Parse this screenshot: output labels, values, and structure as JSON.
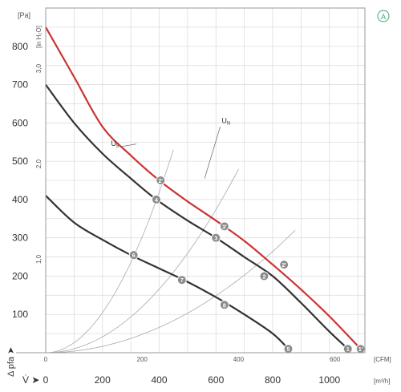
{
  "chart_data": {
    "type": "line",
    "corner_badge": "A",
    "x_primary": {
      "label": "[m³/h]",
      "symbol": "V̇ ➤",
      "ticks": [
        0,
        200,
        400,
        600,
        800,
        1000
      ],
      "range": [
        0,
        1125
      ]
    },
    "x_secondary": {
      "label": "[CFM]",
      "ticks": [
        0,
        200,
        400,
        600
      ]
    },
    "y_primary": {
      "label": "[Pa]",
      "symbol": "Δ pfa ➤",
      "ticks": [
        100,
        200,
        300,
        400,
        500,
        600,
        700,
        800
      ],
      "range": [
        0,
        900
      ]
    },
    "y_secondary": {
      "label": "[in H₂O]",
      "ticks": [
        "1,0",
        "2,0",
        "3,0"
      ]
    },
    "annotations": [
      {
        "text": "UN",
        "x": 620,
        "y": 600
      },
      {
        "text": "U5",
        "x": 230,
        "y": 540
      }
    ],
    "series": [
      {
        "color": "#cc3333",
        "points": [
          [
            0,
            850
          ],
          [
            100,
            720
          ],
          [
            200,
            590
          ],
          [
            300,
            515
          ],
          [
            400,
            450
          ],
          [
            500,
            395
          ],
          [
            600,
            345
          ],
          [
            700,
            292
          ],
          [
            800,
            230
          ],
          [
            900,
            165
          ],
          [
            1000,
            95
          ],
          [
            1110,
            10
          ]
        ],
        "markers": [
          {
            "label": "2'",
            "x": 405,
            "y": 450
          },
          {
            "label": "3'",
            "x": 630,
            "y": 330
          },
          {
            "label": "2'",
            "x": 840,
            "y": 230
          },
          {
            "label": "1'",
            "x": 1110,
            "y": 10
          }
        ]
      },
      {
        "color": "#333333",
        "points": [
          [
            0,
            700
          ],
          [
            100,
            600
          ],
          [
            200,
            520
          ],
          [
            300,
            455
          ],
          [
            390,
            400
          ],
          [
            500,
            345
          ],
          [
            600,
            300
          ],
          [
            700,
            250
          ],
          [
            800,
            200
          ],
          [
            900,
            130
          ],
          [
            1000,
            55
          ],
          [
            1065,
            10
          ]
        ],
        "markers": [
          {
            "label": "4",
            "x": 390,
            "y": 400
          },
          {
            "label": "3",
            "x": 600,
            "y": 300
          },
          {
            "label": "2",
            "x": 770,
            "y": 200
          },
          {
            "label": "1",
            "x": 1065,
            "y": 10
          }
        ]
      },
      {
        "color": "#333333",
        "points": [
          [
            0,
            410
          ],
          [
            100,
            340
          ],
          [
            200,
            295
          ],
          [
            300,
            255
          ],
          [
            400,
            220
          ],
          [
            500,
            185
          ],
          [
            600,
            145
          ],
          [
            700,
            100
          ],
          [
            800,
            50
          ],
          [
            855,
            10
          ]
        ],
        "markers": [
          {
            "label": "6",
            "x": 310,
            "y": 255
          },
          {
            "label": "7",
            "x": 480,
            "y": 190
          },
          {
            "label": "8",
            "x": 630,
            "y": 125
          },
          {
            "label": "5",
            "x": 855,
            "y": 10
          }
        ]
      }
    ],
    "system_curves": [
      {
        "color": "#aaaaaa",
        "x_end": 450,
        "y_end": 530
      },
      {
        "color": "#aaaaaa",
        "x_end": 680,
        "y_end": 480
      },
      {
        "color": "#aaaaaa",
        "x_end": 880,
        "y_end": 320
      }
    ],
    "grid": true
  }
}
